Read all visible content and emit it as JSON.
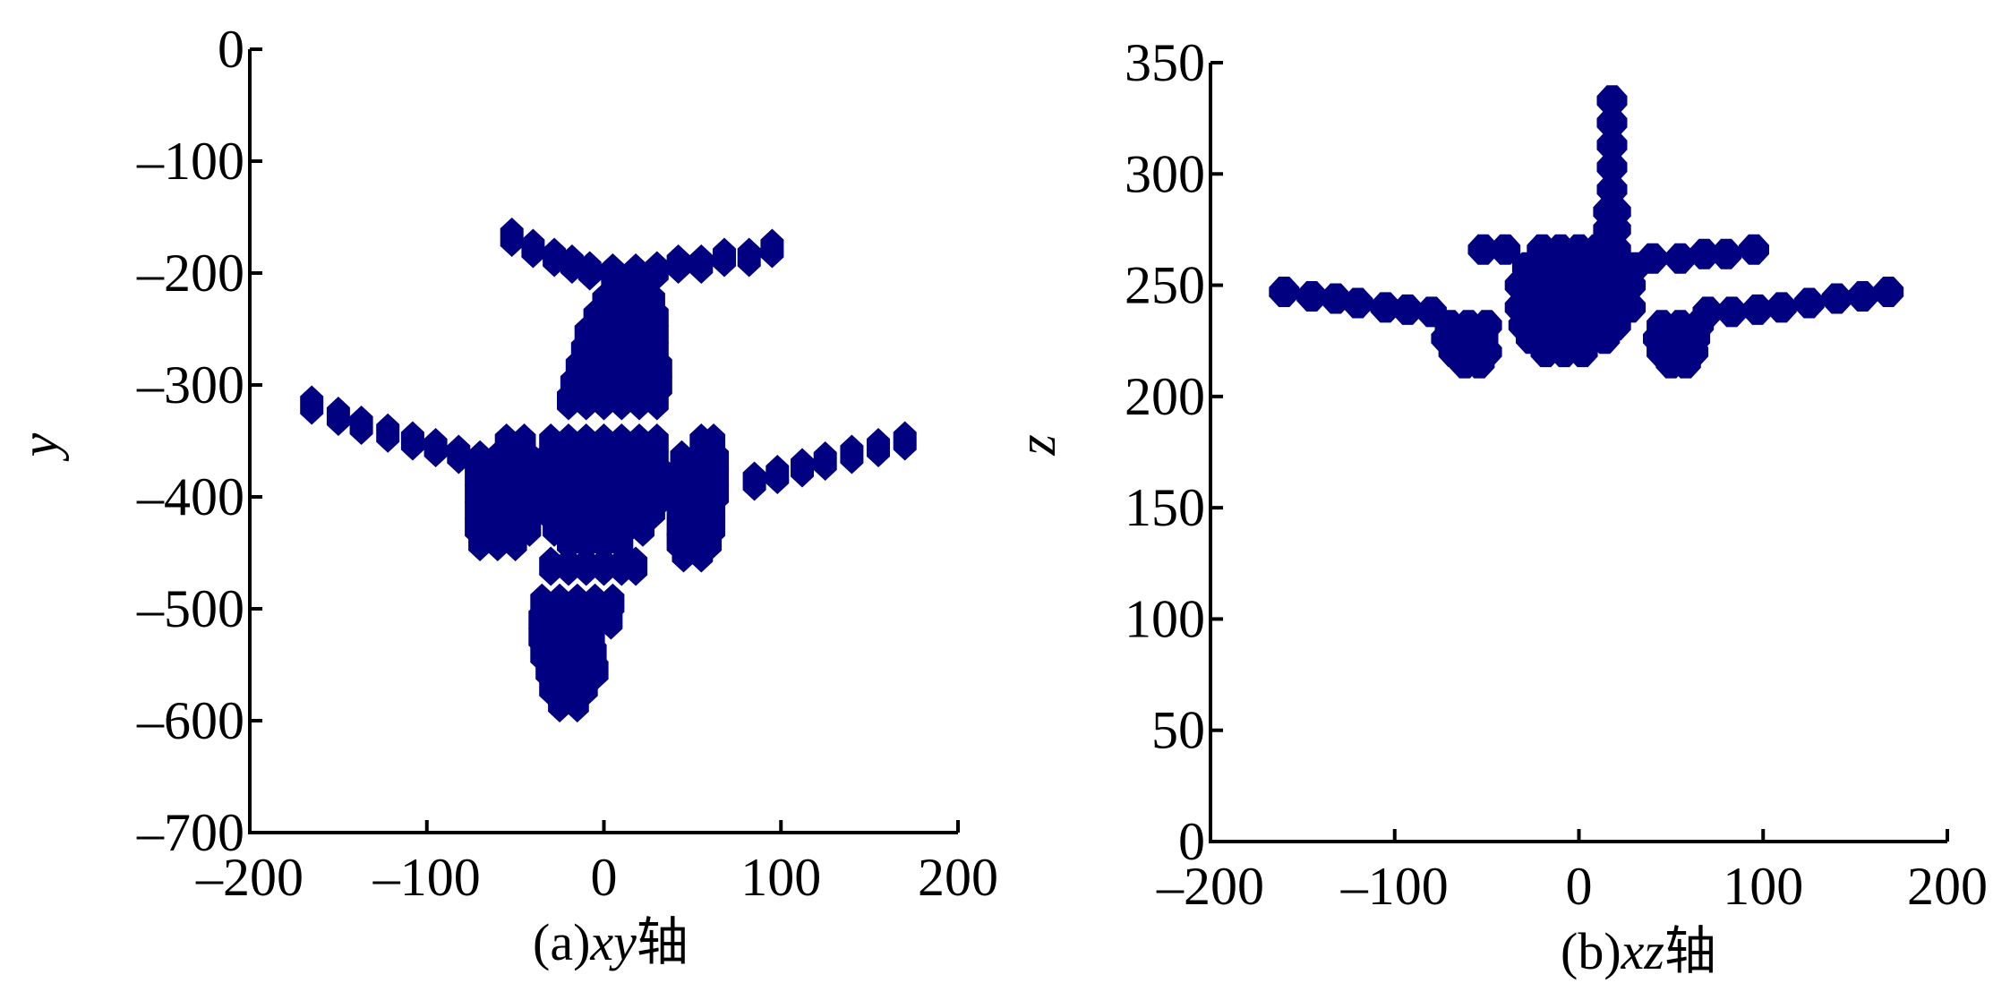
{
  "chart_data": [
    {
      "type": "scatter",
      "title": "",
      "caption_prefix": "(a)",
      "caption_axes": "xy",
      "caption_suffix": "轴",
      "xlabel": "",
      "ylabel": "y",
      "xlim": [
        -200,
        200
      ],
      "ylim": [
        -700,
        0
      ],
      "xticks": [
        -200,
        -100,
        0,
        100,
        200
      ],
      "xtick_labels": [
        "–200",
        "–100",
        "0",
        "100",
        "200"
      ],
      "yticks": [
        0,
        -100,
        -200,
        -300,
        -400,
        -500,
        -600,
        -700
      ],
      "ytick_labels": [
        "0",
        "–100",
        "–200",
        "–300",
        "–400",
        "–500",
        "–600",
        "–700"
      ],
      "marker_color": "#000080",
      "rows": [
        {
          "y": -168,
          "x": [
            -52
          ]
        },
        {
          "y": -178,
          "x": [
            -40,
            95
          ]
        },
        {
          "y": -186,
          "x": [
            -28,
            68,
            82
          ]
        },
        {
          "y": -192,
          "x": [
            -18,
            42,
            55
          ]
        },
        {
          "y": -198,
          "x": [
            -8,
            30
          ]
        },
        {
          "y": -200,
          "x": [
            5,
            18
          ]
        },
        {
          "y": -212,
          "x": [
            5,
            15,
            25
          ]
        },
        {
          "y": -226,
          "x": [
            0,
            10,
            20,
            28
          ]
        },
        {
          "y": -240,
          "x": [
            -5,
            5,
            15,
            25,
            30
          ]
        },
        {
          "y": -255,
          "x": [
            -10,
            0,
            10,
            20,
            30
          ]
        },
        {
          "y": -270,
          "x": [
            -12,
            -2,
            8,
            18,
            30
          ]
        },
        {
          "y": -285,
          "x": [
            -15,
            -5,
            5,
            15,
            25,
            32
          ]
        },
        {
          "y": -300,
          "x": [
            -18,
            -8,
            2,
            12,
            22,
            32
          ]
        },
        {
          "y": -314,
          "x": [
            -20,
            -10,
            0,
            10,
            20,
            30
          ]
        },
        {
          "y": -318,
          "x": [
            -165
          ]
        },
        {
          "y": -328,
          "x": [
            -150
          ]
        },
        {
          "y": -336,
          "x": [
            -137
          ]
        },
        {
          "y": -343,
          "x": [
            -122
          ]
        },
        {
          "y": -350,
          "x": [
            -108,
            170
          ]
        },
        {
          "y": -356,
          "x": [
            -95,
            155
          ]
        },
        {
          "y": -362,
          "x": [
            -82,
            140
          ]
        },
        {
          "y": -368,
          "x": [
            125
          ]
        },
        {
          "y": -374,
          "x": [
            112
          ]
        },
        {
          "y": -380,
          "x": [
            98
          ]
        },
        {
          "y": -386,
          "x": [
            85
          ]
        },
        {
          "y": -352,
          "x": [
            -55,
            -45,
            -30,
            -20,
            -10,
            0,
            10,
            20,
            30,
            55,
            62
          ]
        },
        {
          "y": -367,
          "x": [
            -70,
            -60,
            -50,
            -42,
            -32,
            -22,
            -12,
            -2,
            8,
            18,
            30,
            44,
            54,
            64
          ]
        },
        {
          "y": -382,
          "x": [
            -72,
            -62,
            -52,
            -42,
            -34,
            -24,
            -14,
            -4,
            6,
            16,
            26,
            34,
            44,
            54,
            64
          ]
        },
        {
          "y": -397,
          "x": [
            -72,
            -62,
            -52,
            -42,
            -34,
            -24,
            -14,
            -4,
            6,
            16,
            26,
            34,
            44,
            54,
            64
          ]
        },
        {
          "y": -412,
          "x": [
            -72,
            -62,
            -52,
            -42,
            -32,
            -22,
            -12,
            -2,
            8,
            18,
            28,
            42,
            52,
            62
          ]
        },
        {
          "y": -427,
          "x": [
            -72,
            -62,
            -52,
            -42,
            -28,
            -18,
            -8,
            2,
            12,
            22,
            42,
            52,
            62
          ]
        },
        {
          "y": -440,
          "x": [
            -70,
            -60,
            -50,
            -20,
            -10,
            0,
            10,
            42,
            52,
            60
          ]
        },
        {
          "y": -450,
          "x": [
            45,
            55
          ]
        },
        {
          "y": -462,
          "x": [
            -30,
            -20,
            -10,
            0,
            10,
            18
          ]
        },
        {
          "y": -495,
          "x": [
            -35,
            -25,
            -15,
            -5,
            5
          ]
        },
        {
          "y": -510,
          "x": [
            -36,
            -26,
            -16,
            -6,
            4
          ]
        },
        {
          "y": -525,
          "x": [
            -36,
            -26,
            -16,
            -6
          ]
        },
        {
          "y": -540,
          "x": [
            -35,
            -25,
            -15,
            -5
          ]
        },
        {
          "y": -555,
          "x": [
            -32,
            -22,
            -12,
            -4
          ]
        },
        {
          "y": -570,
          "x": [
            -30,
            -20,
            -10
          ]
        },
        {
          "y": -584,
          "x": [
            -25,
            -15
          ]
        }
      ]
    },
    {
      "type": "scatter",
      "title": "",
      "caption_prefix": "(b)",
      "caption_axes": "xz",
      "caption_suffix": "轴",
      "xlabel": "",
      "ylabel": "z",
      "xlim": [
        -200,
        200
      ],
      "ylim": [
        0,
        350
      ],
      "xticks": [
        -200,
        -100,
        0,
        100,
        200
      ],
      "xtick_labels": [
        "–200",
        "–100",
        "0",
        "100",
        "200"
      ],
      "yticks": [
        0,
        50,
        100,
        150,
        200,
        250,
        300,
        350
      ],
      "ytick_labels": [
        "0",
        "50",
        "100",
        "150",
        "200",
        "250",
        "300",
        "350"
      ],
      "marker_color": "#000080",
      "rows": [
        {
          "y": 333,
          "x": [
            18
          ]
        },
        {
          "y": 323,
          "x": [
            18
          ]
        },
        {
          "y": 313,
          "x": [
            18
          ]
        },
        {
          "y": 303,
          "x": [
            18
          ]
        },
        {
          "y": 293,
          "x": [
            18
          ]
        },
        {
          "y": 283,
          "x": [
            16,
            20
          ]
        },
        {
          "y": 275,
          "x": [
            16,
            20
          ]
        },
        {
          "y": 266,
          "x": [
            -52,
            -40,
            95
          ]
        },
        {
          "y": 264,
          "x": [
            68,
            80
          ]
        },
        {
          "y": 262,
          "x": [
            40,
            55
          ]
        },
        {
          "y": 266,
          "x": [
            -20,
            -10,
            0,
            10,
            20
          ]
        },
        {
          "y": 258,
          "x": [
            -28,
            -18,
            -8,
            2,
            12,
            22,
            30
          ]
        },
        {
          "y": 250,
          "x": [
            -32,
            -22,
            -12,
            -2,
            8,
            18,
            28
          ]
        },
        {
          "y": 247,
          "x": [
            -160,
            168
          ]
        },
        {
          "y": 245,
          "x": [
            -145,
            154
          ]
        },
        {
          "y": 244,
          "x": [
            -132,
            140
          ]
        },
        {
          "y": 242,
          "x": [
            -120,
            125
          ]
        },
        {
          "y": 240,
          "x": [
            -105,
            110
          ]
        },
        {
          "y": 239,
          "x": [
            -93,
            97
          ]
        },
        {
          "y": 238,
          "x": [
            -80,
            83,
            70
          ]
        },
        {
          "y": 240,
          "x": [
            -32,
            -22,
            -12,
            -2,
            8,
            18,
            28
          ]
        },
        {
          "y": 232,
          "x": [
            -70,
            -60,
            -50,
            -30,
            -20,
            -10,
            0,
            10,
            20,
            45,
            55,
            65
          ]
        },
        {
          "y": 226,
          "x": [
            -72,
            -62,
            -52,
            -26,
            -16,
            -6,
            4,
            14,
            43,
            53,
            63
          ]
        },
        {
          "y": 220,
          "x": [
            -68,
            -58,
            -50,
            -18,
            -8,
            2,
            45,
            55,
            62
          ]
        },
        {
          "y": 215,
          "x": [
            -62,
            -54,
            50,
            58
          ]
        }
      ]
    }
  ]
}
